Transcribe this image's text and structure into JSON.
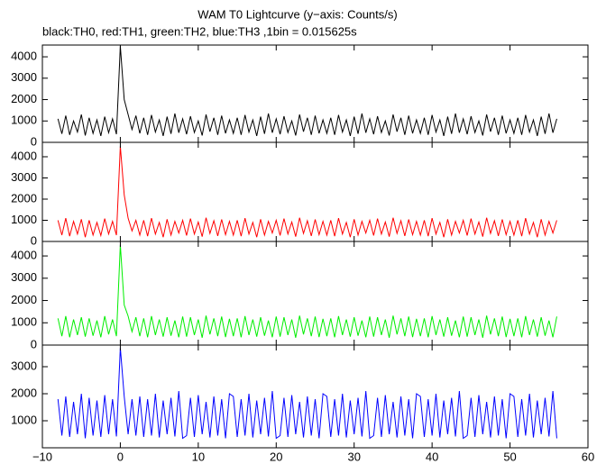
{
  "title": "WAM T0 Lightcurve (y−axis: Counts/s)",
  "subtitle": "black:TH0, red:TH1, green:TH2, blue:TH3 ,1bin = 0.015625s",
  "xlim": [
    -10,
    60
  ],
  "xticks": [
    {
      "value": -10,
      "label": "−10"
    },
    0,
    10,
    20,
    30,
    40,
    50,
    60
  ],
  "x": [
    -8,
    -7.5,
    -7,
    -6.5,
    -6,
    -5.5,
    -5,
    -4.5,
    -4,
    -3.5,
    -3,
    -2.5,
    -2,
    -1.5,
    -1,
    -0.5,
    0,
    0.5,
    1,
    1.5,
    2,
    2.5,
    3,
    3.5,
    4,
    4.5,
    5,
    5.5,
    6,
    6.5,
    7,
    7.5,
    8,
    8.5,
    9,
    9.5,
    10,
    10.5,
    11,
    11.5,
    12,
    12.5,
    13,
    13.5,
    14,
    14.5,
    15,
    15.5,
    16,
    16.5,
    17,
    17.5,
    18,
    18.5,
    19,
    19.5,
    20,
    20.5,
    21,
    21.5,
    22,
    22.5,
    23,
    23.5,
    24,
    24.5,
    25,
    25.5,
    26,
    26.5,
    27,
    27.5,
    28,
    28.5,
    29,
    29.5,
    30,
    30.5,
    31,
    31.5,
    32,
    32.5,
    33,
    33.5,
    34,
    34.5,
    35,
    35.5,
    36,
    36.5,
    37,
    37.5,
    38,
    38.5,
    39,
    39.5,
    40,
    40.5,
    41,
    41.5,
    42,
    42.5,
    43,
    43.5,
    44,
    44.5,
    45,
    45.5,
    46,
    46.5,
    47,
    47.5,
    48,
    48.5,
    49,
    49.5,
    50,
    50.5,
    51,
    51.5,
    52,
    52.5,
    53,
    53.5,
    54,
    54.5,
    55,
    55.5,
    56
  ],
  "chart_data": [
    {
      "type": "line",
      "ylim": [
        0,
        4550
      ],
      "yticks": [
        0,
        1000,
        2000,
        3000,
        4000
      ],
      "series": [
        {
          "color": "#000000",
          "values": [
            1100,
            400,
            1250,
            350,
            1000,
            480,
            1300,
            320,
            1150,
            420,
            1050,
            300,
            1200,
            450,
            1100,
            380,
            4500,
            2000,
            1300,
            600,
            1250,
            420,
            1150,
            350,
            1280,
            480,
            1050,
            300,
            1200,
            400,
            1350,
            450,
            1100,
            380,
            1220,
            460,
            1000,
            320,
            1300,
            500,
            1150,
            350,
            1250,
            420,
            1050,
            420,
            1150,
            350,
            1280,
            480,
            1050,
            300,
            1200,
            400,
            1350,
            450,
            1100,
            380,
            1220,
            460,
            1000,
            320,
            1300,
            500,
            1150,
            350,
            1250,
            420,
            1050,
            420,
            1150,
            350,
            1280,
            480,
            1050,
            300,
            1200,
            400,
            1350,
            450,
            1100,
            380,
            1220,
            460,
            1000,
            320,
            1300,
            500,
            1150,
            350,
            1250,
            420,
            1050,
            420,
            1150,
            350,
            1280,
            480,
            1050,
            300,
            1200,
            400,
            1350,
            450,
            1100,
            380,
            1220,
            460,
            1000,
            320,
            1300,
            500,
            1150,
            350,
            1250,
            420,
            1050,
            420,
            1150,
            350,
            1280,
            480,
            1050,
            300,
            1200,
            400,
            1350,
            450,
            1100
          ]
        }
      ]
    },
    {
      "type": "line",
      "ylim": [
        0,
        4680
      ],
      "yticks": [
        0,
        1000,
        2000,
        3000,
        4000
      ],
      "series": [
        {
          "color": "#ff0000",
          "values": [
            1000,
            300,
            1100,
            250,
            950,
            350,
            1050,
            200,
            1000,
            300,
            900,
            280,
            1080,
            350,
            950,
            300,
            4500,
            2200,
            1100,
            500,
            1000,
            300,
            1000,
            250,
            1100,
            350,
            900,
            200,
            1050,
            300,
            950,
            400,
            1000,
            280,
            1080,
            350,
            920,
            230,
            1120,
            380,
            980,
            260,
            1040,
            320,
            950,
            300,
            1000,
            250,
            1100,
            350,
            900,
            200,
            1050,
            300,
            950,
            400,
            1000,
            280,
            1080,
            350,
            920,
            230,
            1120,
            380,
            980,
            260,
            1040,
            320,
            950,
            300,
            1000,
            250,
            1100,
            350,
            900,
            200,
            1050,
            300,
            950,
            400,
            1000,
            280,
            1080,
            350,
            920,
            230,
            1120,
            380,
            980,
            260,
            1040,
            320,
            950,
            300,
            1000,
            250,
            1100,
            350,
            900,
            200,
            1050,
            300,
            950,
            400,
            1000,
            280,
            1080,
            350,
            920,
            230,
            1120,
            380,
            980,
            260,
            1040,
            320,
            950,
            300,
            1000,
            250,
            1100,
            350,
            900,
            200,
            1050,
            300,
            950,
            400,
            1000
          ]
        }
      ]
    },
    {
      "type": "line",
      "ylim": [
        0,
        4650
      ],
      "yticks": [
        0,
        1000,
        2000,
        3000,
        4000
      ],
      "series": [
        {
          "color": "#00ee00",
          "values": [
            1200,
            400,
            1300,
            350,
            1150,
            450,
            1250,
            380,
            1200,
            420,
            1100,
            350,
            1300,
            480,
            1150,
            400,
            4500,
            1800,
            1300,
            600,
            1250,
            400,
            1200,
            350,
            1300,
            450,
            1150,
            380,
            1250,
            420,
            1100,
            350,
            1280,
            380,
            1250,
            450,
            1150,
            330,
            1320,
            480,
            1200,
            400,
            1280,
            360,
            1180,
            400,
            1200,
            350,
            1300,
            450,
            1150,
            380,
            1250,
            420,
            1100,
            350,
            1280,
            380,
            1250,
            450,
            1150,
            330,
            1320,
            480,
            1200,
            400,
            1280,
            360,
            1180,
            400,
            1200,
            350,
            1300,
            450,
            1150,
            380,
            1250,
            420,
            1100,
            350,
            1280,
            380,
            1250,
            450,
            1150,
            330,
            1320,
            480,
            1200,
            400,
            1280,
            360,
            1180,
            400,
            1200,
            350,
            1300,
            450,
            1150,
            380,
            1250,
            420,
            1100,
            350,
            1280,
            380,
            1250,
            450,
            1150,
            330,
            1320,
            480,
            1200,
            400,
            1280,
            360,
            1180,
            400,
            1200,
            350,
            1300,
            450,
            1150,
            380,
            1250,
            420,
            1100,
            350,
            1280
          ]
        }
      ]
    },
    {
      "type": "line",
      "ylim": [
        0,
        3800
      ],
      "yticks": [
        1000,
        2000,
        3000
      ],
      "series": [
        {
          "color": "#0000ff",
          "values": [
            1800,
            450,
            1900,
            400,
            1700,
            500,
            2000,
            350,
            1850,
            450,
            1750,
            400,
            1950,
            500,
            1800,
            420,
            3700,
            1900,
            500,
            1800,
            450,
            1900,
            400,
            1800,
            450,
            2000,
            380,
            1750,
            500,
            1850,
            420,
            2100,
            350,
            450,
            1850,
            400,
            1950,
            500,
            1700,
            380,
            1900,
            450,
            1800,
            350,
            2000,
            1900,
            400,
            1800,
            450,
            2000,
            380,
            1750,
            500,
            1850,
            420,
            2100,
            350,
            450,
            1850,
            400,
            1950,
            500,
            1700,
            380,
            1900,
            450,
            1800,
            350,
            2000,
            1900,
            400,
            1800,
            450,
            2000,
            380,
            1750,
            500,
            1850,
            420,
            2100,
            350,
            450,
            1850,
            400,
            1950,
            500,
            1700,
            380,
            1900,
            450,
            1800,
            350,
            2000,
            1900,
            400,
            1800,
            450,
            2000,
            380,
            1750,
            500,
            1850,
            420,
            2100,
            350,
            450,
            1850,
            400,
            1950,
            500,
            1700,
            380,
            1900,
            450,
            1800,
            350,
            2000,
            1900,
            400,
            1800,
            450,
            2000,
            380,
            1750,
            500,
            1850,
            420,
            2100,
            350
          ]
        }
      ]
    }
  ]
}
